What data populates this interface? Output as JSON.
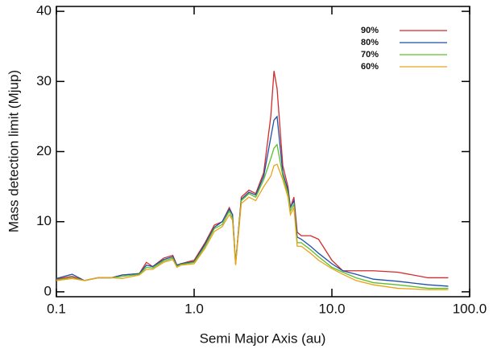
{
  "chart_data": {
    "type": "line",
    "x_label": "Semi Major Axis (au)",
    "y_label": "Mass detection limit (Mjup)",
    "x": [
      0.1,
      0.13,
      0.16,
      0.2,
      0.25,
      0.3,
      0.4,
      0.45,
      0.5,
      0.6,
      0.7,
      0.75,
      0.8,
      1.0,
      1.2,
      1.4,
      1.6,
      1.8,
      1.9,
      2.0,
      2.2,
      2.5,
      2.8,
      3.2,
      3.6,
      3.8,
      4.0,
      4.4,
      4.8,
      5.0,
      5.3,
      5.6,
      6,
      7,
      8,
      10,
      12,
      15,
      20,
      30,
      50,
      70
    ],
    "series": [
      {
        "name": "90%",
        "color": "#d42a2a",
        "values": [
          1.8,
          2.2,
          1.6,
          2.0,
          2.0,
          2.4,
          2.6,
          4.2,
          3.6,
          4.8,
          5.2,
          3.8,
          4.0,
          4.5,
          7.0,
          9.5,
          10.0,
          12.0,
          11.0,
          4.0,
          13.5,
          14.5,
          14.0,
          17.0,
          25.0,
          31.5,
          29.0,
          18.0,
          15.0,
          12.0,
          13.5,
          8.5,
          8.0,
          8.0,
          7.5,
          4.5,
          3.0,
          3.0,
          3.0,
          2.8,
          2.0,
          2.0
        ]
      },
      {
        "name": "80%",
        "color": "#1f4faa",
        "values": [
          1.9,
          2.5,
          1.6,
          2.0,
          2.0,
          2.4,
          2.6,
          3.8,
          3.6,
          4.6,
          5.0,
          3.8,
          4.0,
          4.3,
          6.8,
          9.2,
          10.0,
          11.8,
          11.0,
          4.0,
          13.2,
          14.2,
          13.8,
          16.5,
          22.0,
          24.5,
          25.0,
          17.0,
          14.5,
          12.0,
          13.0,
          7.8,
          7.5,
          6.5,
          5.5,
          4.0,
          3.0,
          2.5,
          1.8,
          1.5,
          1.0,
          0.8
        ]
      },
      {
        "name": "70%",
        "color": "#5bbf2a",
        "values": [
          1.7,
          2.0,
          1.6,
          2.0,
          2.0,
          2.2,
          2.5,
          3.5,
          3.4,
          4.4,
          4.8,
          3.6,
          3.9,
          4.2,
          6.5,
          9.0,
          9.6,
          11.5,
          10.5,
          4.0,
          13.0,
          14.0,
          13.5,
          16.0,
          19.0,
          20.5,
          21.0,
          16.5,
          14.0,
          11.5,
          12.5,
          7.0,
          7.0,
          6.0,
          5.0,
          3.5,
          2.8,
          2.0,
          1.3,
          1.0,
          0.5,
          0.5
        ]
      },
      {
        "name": "60%",
        "color": "#e8a317",
        "values": [
          1.6,
          1.9,
          1.6,
          2.0,
          2.0,
          1.9,
          2.4,
          3.2,
          3.2,
          4.2,
          4.6,
          3.5,
          3.8,
          4.0,
          6.2,
          8.6,
          9.3,
          11.0,
          10.2,
          3.8,
          12.6,
          13.5,
          13.0,
          15.0,
          16.5,
          18.0,
          18.2,
          16.0,
          13.5,
          11.0,
          12.0,
          6.5,
          6.5,
          5.5,
          4.5,
          3.3,
          2.5,
          1.6,
          1.0,
          0.5,
          0.3,
          0.3
        ]
      }
    ],
    "xlim": [
      0.1,
      100
    ],
    "x_log": true,
    "xticks": [
      0.1,
      {
        "value": 1,
        "label": "1.0"
      },
      {
        "value": 10,
        "label": "10.0"
      },
      {
        "value": 100,
        "label": "100.0"
      }
    ],
    "ylim": [
      -0.7,
      40.7
    ],
    "yticks": [
      0,
      10,
      20,
      30,
      40
    ],
    "grid": false,
    "legend": "upper right"
  }
}
